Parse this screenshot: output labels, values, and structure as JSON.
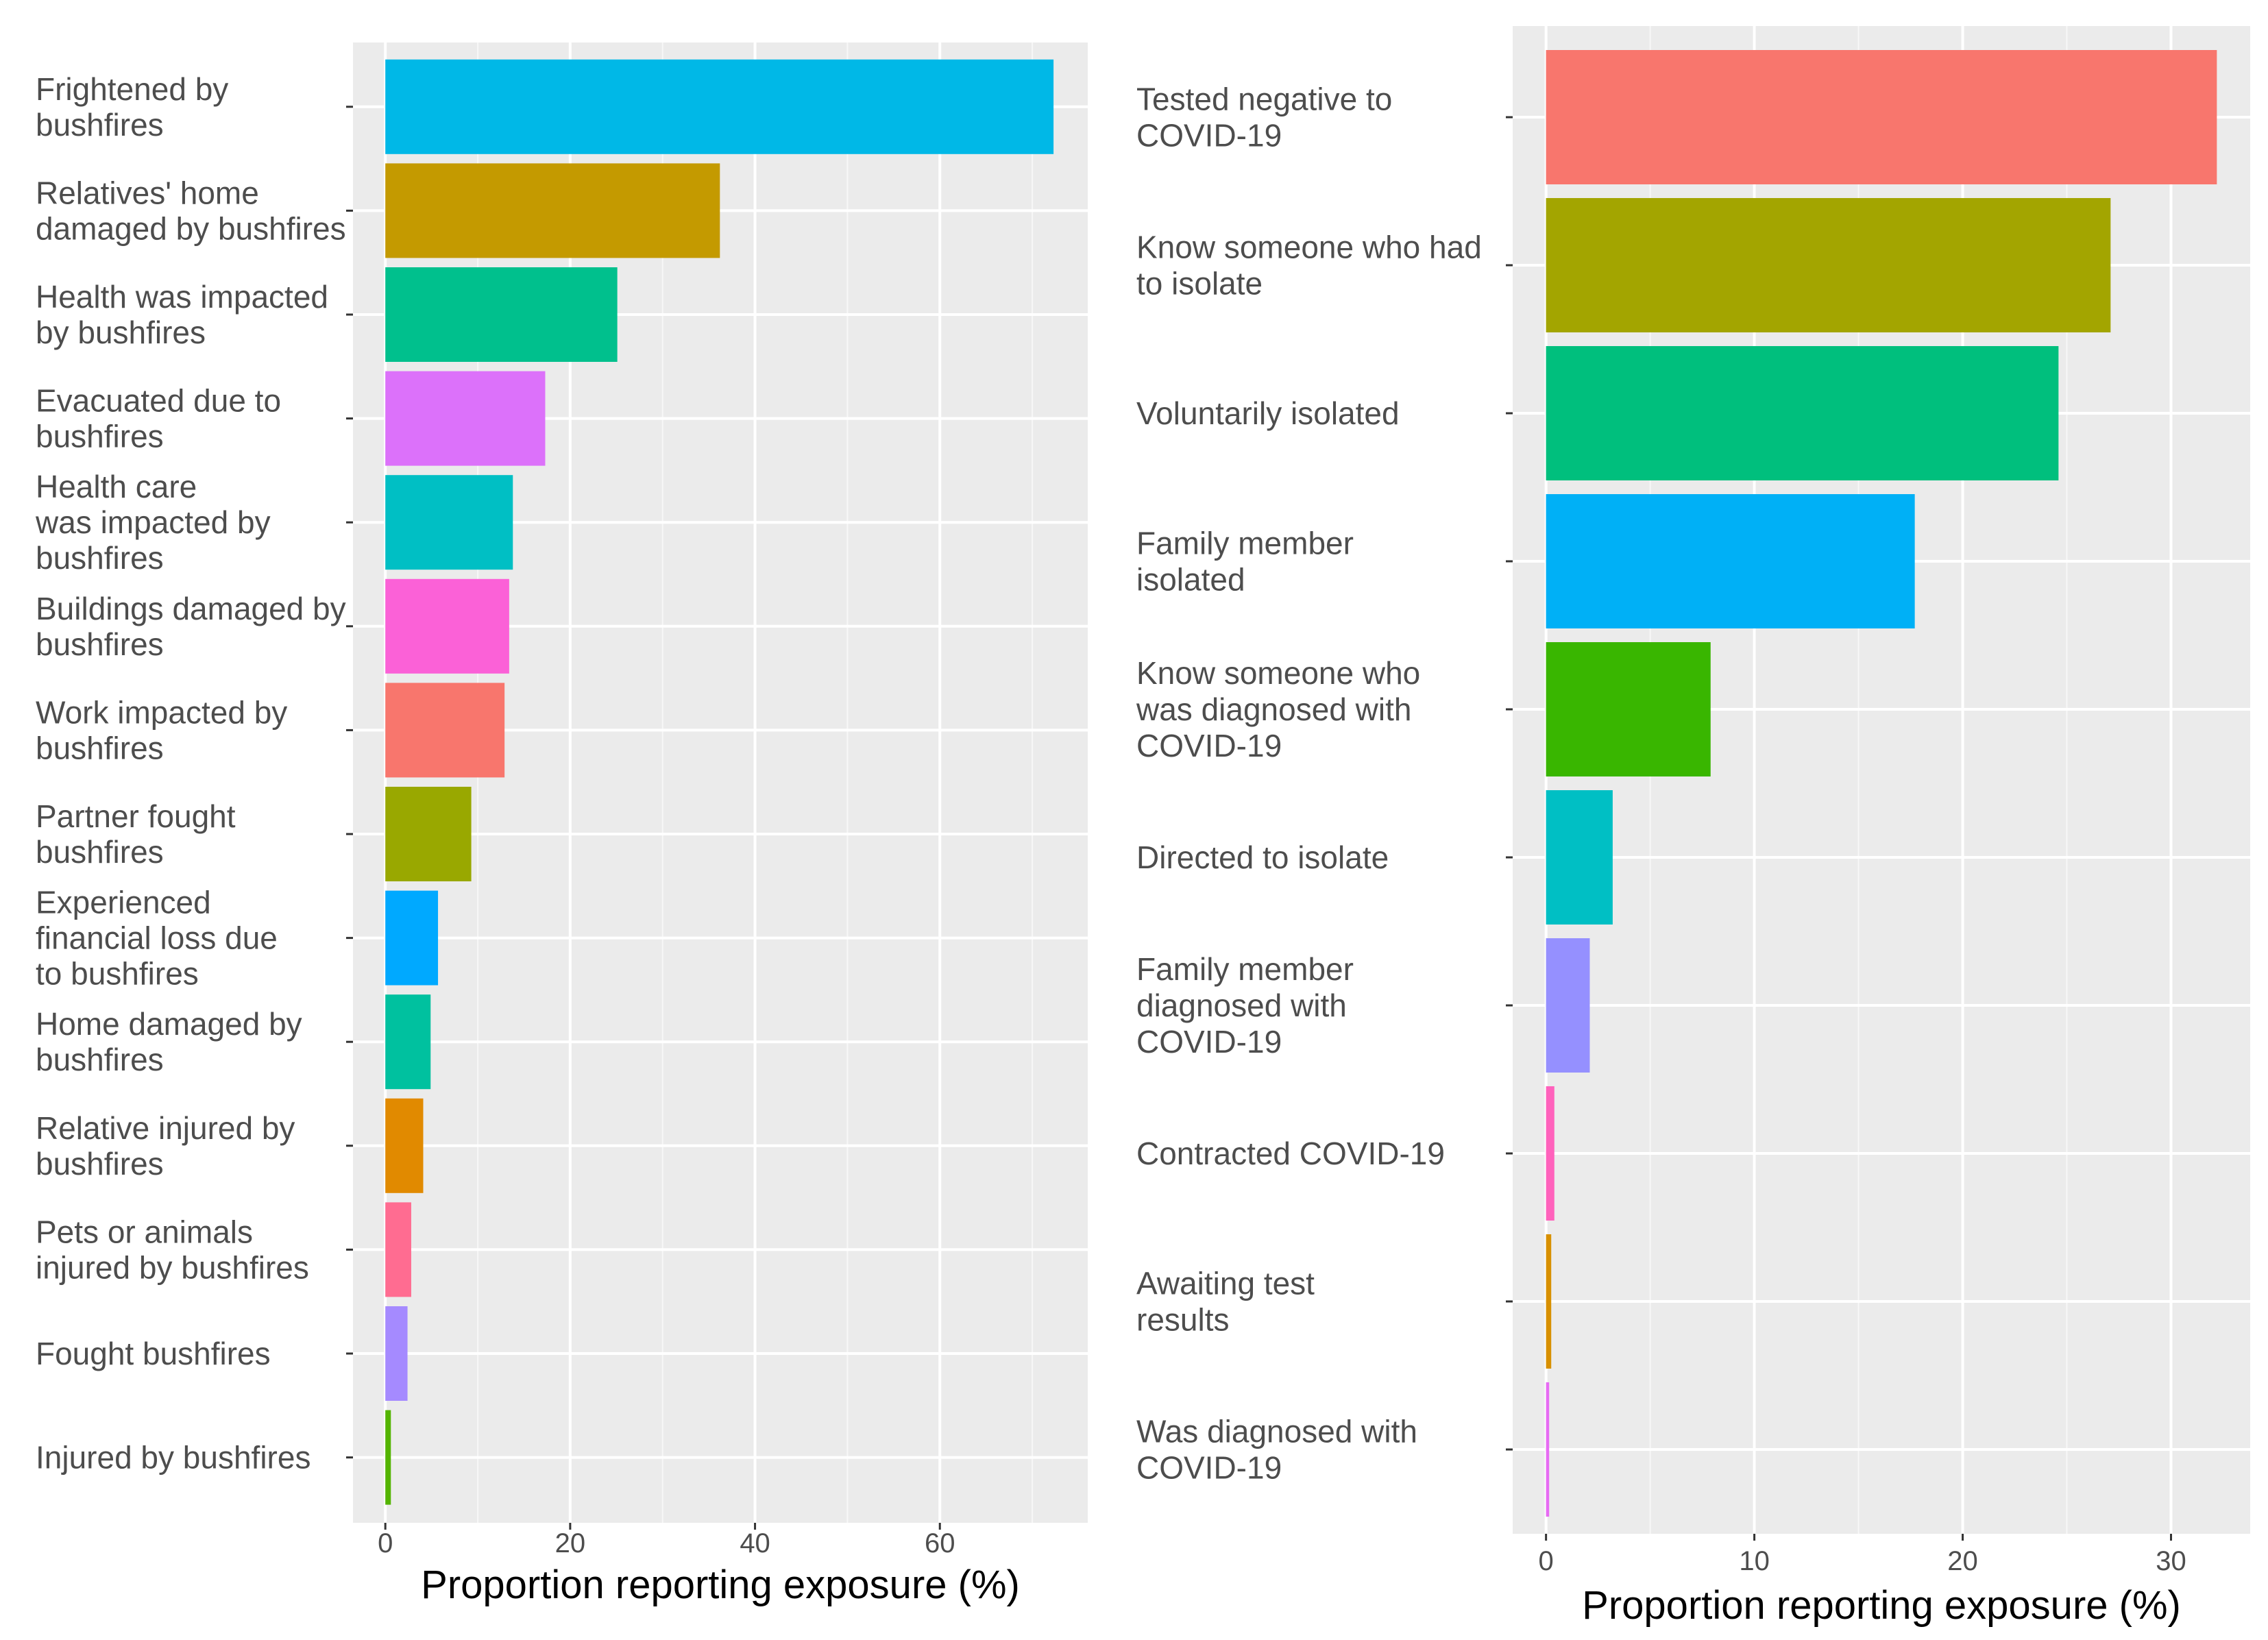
{
  "chart_data": [
    {
      "type": "bar",
      "orientation": "horizontal",
      "xlabel": "Proportion reporting exposure (%)",
      "xlim": [
        -3.5,
        76
      ],
      "xticks": [
        0,
        20,
        40,
        60
      ],
      "grid": true,
      "categories": [
        [
          "Frightened by",
          "bushfires"
        ],
        [
          "Relatives' home",
          "damaged by bushfires"
        ],
        [
          "Health was impacted",
          "by bushfires"
        ],
        [
          "Evacuated due to",
          "bushfires"
        ],
        [
          "Health care",
          "was impacted by",
          "bushfires"
        ],
        [
          "Buildings damaged by",
          "bushfires"
        ],
        [
          "Work impacted by",
          "bushfires"
        ],
        [
          "Partner fought",
          "bushfires"
        ],
        [
          "Experienced",
          "financial loss due",
          "to bushfires"
        ],
        [
          "Home damaged by",
          "bushfires"
        ],
        [
          "Relative injured by",
          "bushfires"
        ],
        [
          "Pets or animals",
          "injured by bushfires"
        ],
        [
          "Fought bushfires"
        ],
        [
          "Injured by bushfires"
        ]
      ],
      "values": [
        72.3,
        36.2,
        25.1,
        17.3,
        13.8,
        13.4,
        12.9,
        9.3,
        5.7,
        4.9,
        4.1,
        2.8,
        2.4,
        0.6
      ],
      "colors": [
        "#00B8E7",
        "#C49A00",
        "#00C08D",
        "#DC71FA",
        "#00BFC4",
        "#FB61D7",
        "#F8766D",
        "#99A800",
        "#00A9FF",
        "#00C19F",
        "#E18A00",
        "#FF6C91",
        "#A58AFF",
        "#53B400"
      ]
    },
    {
      "type": "bar",
      "orientation": "horizontal",
      "xlabel": "Proportion reporting exposure (%)",
      "xlim": [
        -1.6,
        33.8
      ],
      "xticks": [
        0,
        10,
        20,
        30
      ],
      "grid": true,
      "categories": [
        [
          "Tested negative to",
          "COVID-19"
        ],
        [
          "Know someone who had",
          "to isolate"
        ],
        [
          "Voluntarily isolated"
        ],
        [
          "Family member",
          "isolated"
        ],
        [
          "Know someone who",
          "was diagnosed with",
          "COVID-19"
        ],
        [
          "Directed to isolate"
        ],
        [
          "Family member",
          "diagnosed with",
          "COVID-19"
        ],
        [
          "Contracted COVID-19"
        ],
        [
          "Awaiting test",
          "results"
        ],
        [
          "Was diagnosed with",
          "COVID-19"
        ]
      ],
      "values": [
        32.2,
        27.1,
        24.6,
        17.7,
        7.9,
        3.2,
        2.1,
        0.4,
        0.25,
        0.15
      ],
      "colors": [
        "#F8766D",
        "#A3A500",
        "#00BF7D",
        "#00B0F6",
        "#39B600",
        "#00BFC4",
        "#9590FF",
        "#FF62BC",
        "#D89000",
        "#E76BF3"
      ]
    }
  ]
}
